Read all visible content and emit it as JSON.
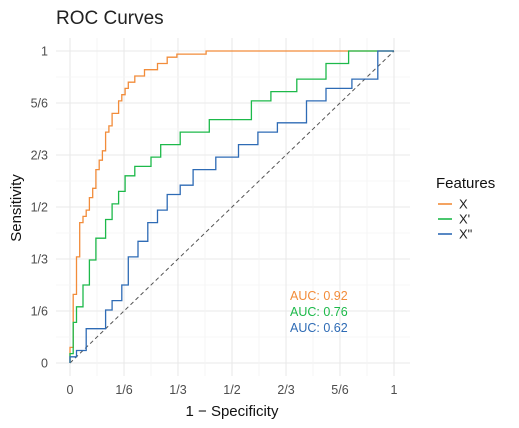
{
  "chart_data": {
    "type": "line",
    "title": "ROC Curves",
    "xlabel": "1 − Specificity",
    "ylabel": "Sensitivity",
    "xlim": [
      0,
      1
    ],
    "ylim": [
      0,
      1
    ],
    "grid": true,
    "legend_title": "Features",
    "legend_position": "right",
    "x_tick_labels": [
      "0",
      "1/6",
      "1/3",
      "1/2",
      "2/3",
      "5/6",
      "1"
    ],
    "y_tick_labels": [
      "0",
      "1/6",
      "1/3",
      "1/2",
      "2/3",
      "5/6",
      "1"
    ],
    "tick_values": [
      0,
      0.1667,
      0.3333,
      0.5,
      0.6667,
      0.8333,
      1
    ],
    "diagonal_reference": true,
    "annotations": [
      {
        "text": "AUC: 0.92",
        "color": "#F28C3A"
      },
      {
        "text": "AUC: 0.76",
        "color": "#1DB94A"
      },
      {
        "text": "AUC: 0.62",
        "color": "#2E6BB5"
      }
    ],
    "series": [
      {
        "name": "X",
        "color": "#F28C3A",
        "points": [
          [
            0,
            0
          ],
          [
            0,
            0.05
          ],
          [
            0.01,
            0.05
          ],
          [
            0.01,
            0.2
          ],
          [
            0.01,
            0.22
          ],
          [
            0.02,
            0.22
          ],
          [
            0.02,
            0.3
          ],
          [
            0.02,
            0.34
          ],
          [
            0.03,
            0.34
          ],
          [
            0.03,
            0.45
          ],
          [
            0.04,
            0.45
          ],
          [
            0.04,
            0.47
          ],
          [
            0.05,
            0.47
          ],
          [
            0.05,
            0.49
          ],
          [
            0.06,
            0.49
          ],
          [
            0.06,
            0.53
          ],
          [
            0.07,
            0.53
          ],
          [
            0.07,
            0.56
          ],
          [
            0.08,
            0.56
          ],
          [
            0.08,
            0.62
          ],
          [
            0.09,
            0.62
          ],
          [
            0.09,
            0.65
          ],
          [
            0.1,
            0.65
          ],
          [
            0.1,
            0.68
          ],
          [
            0.11,
            0.68
          ],
          [
            0.11,
            0.74
          ],
          [
            0.12,
            0.74
          ],
          [
            0.12,
            0.76
          ],
          [
            0.13,
            0.76
          ],
          [
            0.13,
            0.8
          ],
          [
            0.15,
            0.8
          ],
          [
            0.15,
            0.84
          ],
          [
            0.16,
            0.84
          ],
          [
            0.16,
            0.86
          ],
          [
            0.17,
            0.86
          ],
          [
            0.17,
            0.88
          ],
          [
            0.18,
            0.88
          ],
          [
            0.18,
            0.9
          ],
          [
            0.2,
            0.9
          ],
          [
            0.2,
            0.92
          ],
          [
            0.23,
            0.92
          ],
          [
            0.23,
            0.94
          ],
          [
            0.27,
            0.94
          ],
          [
            0.27,
            0.96
          ],
          [
            0.3,
            0.96
          ],
          [
            0.3,
            0.98
          ],
          [
            0.33,
            0.98
          ],
          [
            0.33,
            0.99
          ],
          [
            0.42,
            0.99
          ],
          [
            0.42,
            1.0
          ],
          [
            1,
            1.0
          ]
        ]
      },
      {
        "name": "X'",
        "color": "#1DB94A",
        "points": [
          [
            0,
            0
          ],
          [
            0,
            0.03
          ],
          [
            0.01,
            0.03
          ],
          [
            0.01,
            0.13
          ],
          [
            0.02,
            0.13
          ],
          [
            0.02,
            0.18
          ],
          [
            0.04,
            0.18
          ],
          [
            0.04,
            0.25
          ],
          [
            0.06,
            0.25
          ],
          [
            0.06,
            0.33
          ],
          [
            0.08,
            0.33
          ],
          [
            0.08,
            0.4
          ],
          [
            0.11,
            0.4
          ],
          [
            0.11,
            0.46
          ],
          [
            0.13,
            0.46
          ],
          [
            0.13,
            0.51
          ],
          [
            0.15,
            0.51
          ],
          [
            0.15,
            0.55
          ],
          [
            0.17,
            0.55
          ],
          [
            0.17,
            0.6
          ],
          [
            0.2,
            0.6
          ],
          [
            0.2,
            0.63
          ],
          [
            0.25,
            0.63
          ],
          [
            0.25,
            0.66
          ],
          [
            0.28,
            0.66
          ],
          [
            0.28,
            0.7
          ],
          [
            0.34,
            0.7
          ],
          [
            0.34,
            0.74
          ],
          [
            0.43,
            0.74
          ],
          [
            0.43,
            0.78
          ],
          [
            0.56,
            0.78
          ],
          [
            0.56,
            0.84
          ],
          [
            0.62,
            0.84
          ],
          [
            0.62,
            0.87
          ],
          [
            0.7,
            0.87
          ],
          [
            0.7,
            0.91
          ],
          [
            0.79,
            0.91
          ],
          [
            0.79,
            0.96
          ],
          [
            0.86,
            0.96
          ],
          [
            0.86,
            1.0
          ],
          [
            1,
            1.0
          ]
        ]
      },
      {
        "name": "X\"",
        "color": "#2E6BB5",
        "points": [
          [
            0,
            0
          ],
          [
            0,
            0.02
          ],
          [
            0.02,
            0.02
          ],
          [
            0.02,
            0.04
          ],
          [
            0.05,
            0.04
          ],
          [
            0.05,
            0.11
          ],
          [
            0.11,
            0.11
          ],
          [
            0.11,
            0.17
          ],
          [
            0.13,
            0.17
          ],
          [
            0.13,
            0.2
          ],
          [
            0.16,
            0.2
          ],
          [
            0.16,
            0.25
          ],
          [
            0.18,
            0.25
          ],
          [
            0.18,
            0.34
          ],
          [
            0.21,
            0.34
          ],
          [
            0.21,
            0.39
          ],
          [
            0.24,
            0.39
          ],
          [
            0.24,
            0.45
          ],
          [
            0.27,
            0.45
          ],
          [
            0.27,
            0.49
          ],
          [
            0.3,
            0.49
          ],
          [
            0.3,
            0.54
          ],
          [
            0.34,
            0.54
          ],
          [
            0.34,
            0.57
          ],
          [
            0.38,
            0.57
          ],
          [
            0.38,
            0.62
          ],
          [
            0.45,
            0.62
          ],
          [
            0.45,
            0.66
          ],
          [
            0.52,
            0.66
          ],
          [
            0.52,
            0.7
          ],
          [
            0.58,
            0.7
          ],
          [
            0.58,
            0.74
          ],
          [
            0.64,
            0.74
          ],
          [
            0.64,
            0.77
          ],
          [
            0.73,
            0.77
          ],
          [
            0.73,
            0.84
          ],
          [
            0.79,
            0.84
          ],
          [
            0.79,
            0.88
          ],
          [
            0.87,
            0.88
          ],
          [
            0.87,
            0.91
          ],
          [
            0.95,
            0.91
          ],
          [
            0.95,
            1.0
          ],
          [
            1,
            1.0
          ]
        ]
      }
    ]
  }
}
